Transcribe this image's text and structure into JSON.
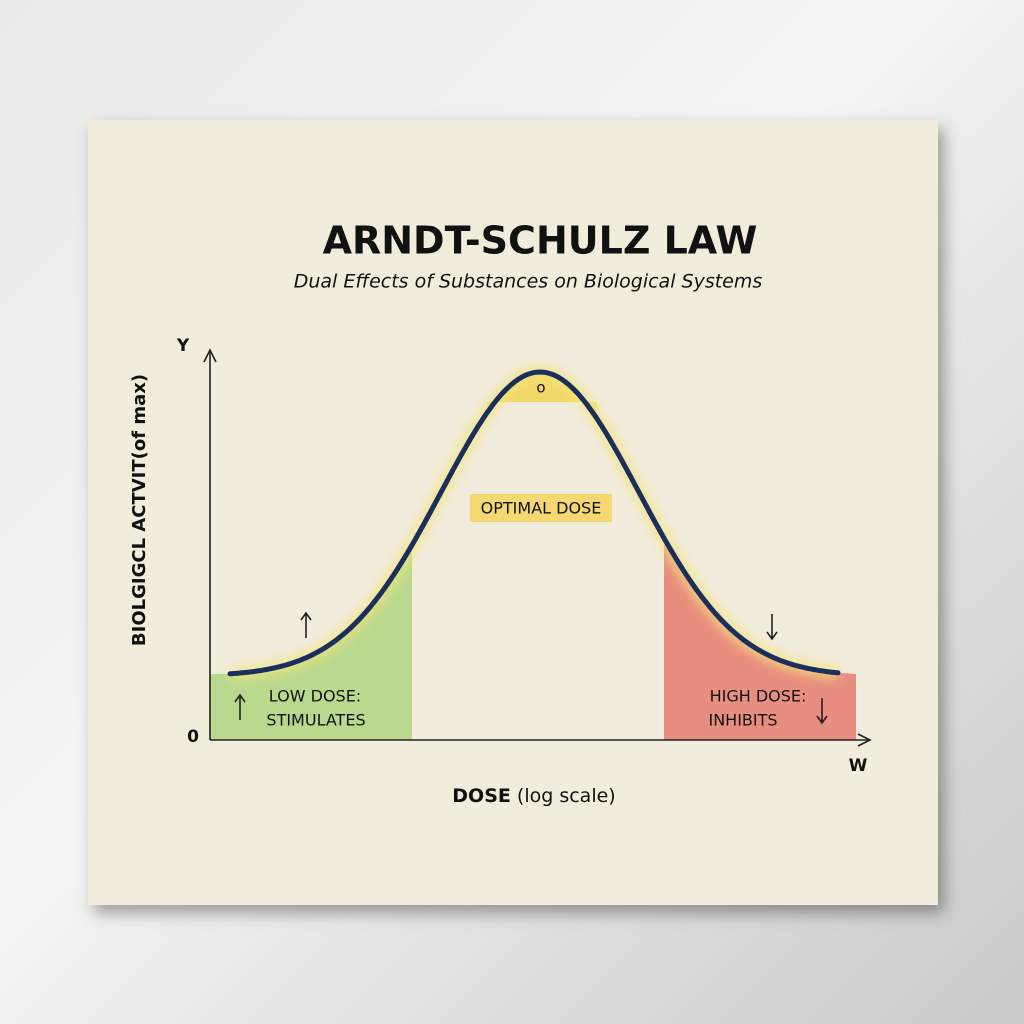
{
  "title": "ARNDT-SCHULZ LAW",
  "subtitle": "Dual Effects of Substances on Biological Systems",
  "axes": {
    "y_letter": "Y",
    "origin": "0",
    "x_letter": "W",
    "y_label": "BIOLGIGCL ACTVIT(of max)",
    "x_label": {
      "bold": "DOSE",
      "rest": "(log scale)"
    }
  },
  "annotations": {
    "peak": "o",
    "optimal": "OPTIMAL DOSE",
    "low": [
      "LOW DOSE:",
      "STIMULATES"
    ],
    "high": [
      "HIGH DOSE:",
      "INHIBITS"
    ]
  }
}
